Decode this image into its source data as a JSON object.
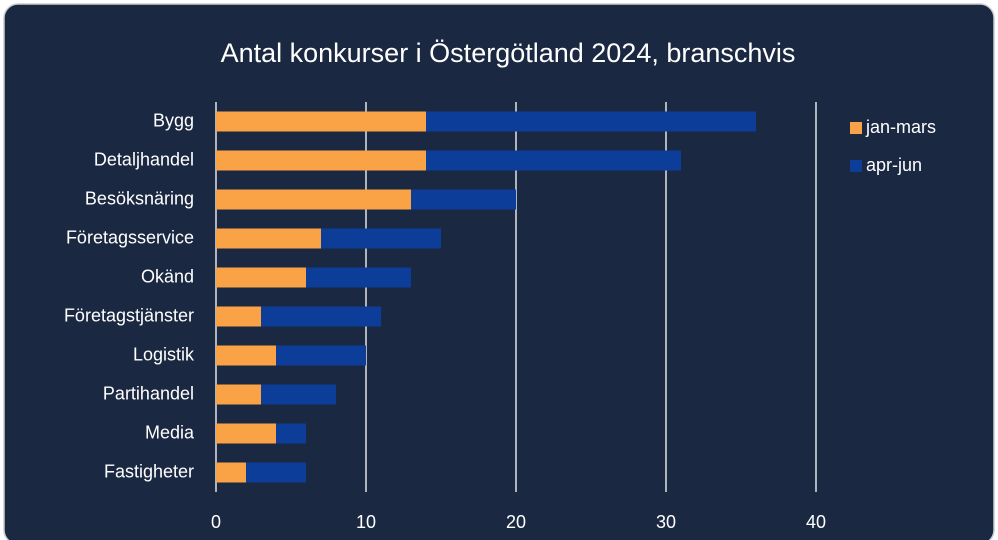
{
  "chart_data": {
    "type": "stacked_bar_horizontal",
    "title": "Antal konkurser i Östergötland 2024, branschvis",
    "categories": [
      "Bygg",
      "Detaljhandel",
      "Besöksnäring",
      "Företagsservice",
      "Okänd",
      "Företagstjänster",
      "Logistik",
      "Partihandel",
      "Media",
      "Fastigheter"
    ],
    "series": [
      {
        "name": "jan-mars",
        "color": "#f9a246",
        "values": [
          14,
          14,
          13,
          7,
          6,
          3,
          4,
          3,
          4,
          2
        ]
      },
      {
        "name": "apr-jun",
        "color": "#0c3d99",
        "values": [
          22,
          17,
          7,
          8,
          7,
          8,
          6,
          5,
          2,
          4
        ]
      }
    ],
    "xlim": [
      0,
      40
    ],
    "xticks": [
      0,
      10,
      20,
      30,
      40
    ],
    "grid": true,
    "legend": "right"
  }
}
